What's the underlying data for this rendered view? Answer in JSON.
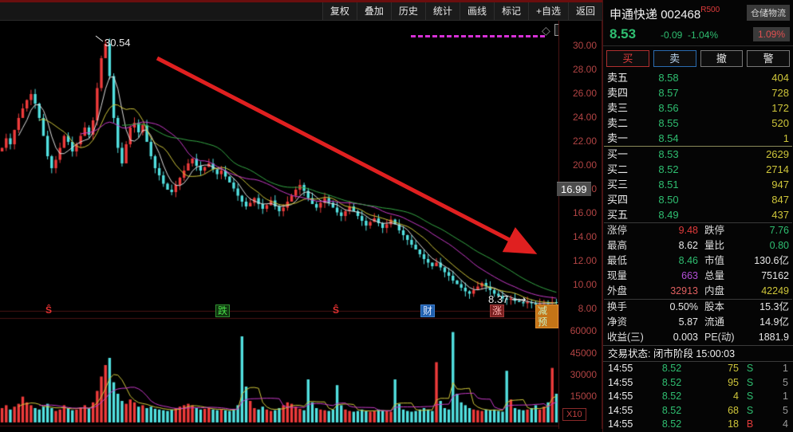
{
  "toolbar": {
    "items": [
      "复权",
      "叠加",
      "历史",
      "统计",
      "画线",
      "标记",
      "+自选",
      "返回"
    ]
  },
  "panel": {
    "header": {
      "name": "申通快递",
      "code": "002468",
      "tag_r": "R",
      "tag_idx": "500",
      "sector": "仓储物流",
      "price": "8.53",
      "change": "-0.09",
      "change_pct": "-1.04%",
      "sector_pct": "1.09%"
    },
    "actions": {
      "buy": "买",
      "sell": "卖",
      "cancel": "撤",
      "alert": "警"
    },
    "orderbook": {
      "asks": [
        {
          "label": "卖五",
          "price": "8.58",
          "vol": "404"
        },
        {
          "label": "卖四",
          "price": "8.57",
          "vol": "728"
        },
        {
          "label": "卖三",
          "price": "8.56",
          "vol": "172"
        },
        {
          "label": "卖二",
          "price": "8.55",
          "vol": "520"
        },
        {
          "label": "卖一",
          "price": "8.54",
          "vol": "1"
        }
      ],
      "bids": [
        {
          "label": "买一",
          "price": "8.53",
          "vol": "2629"
        },
        {
          "label": "买二",
          "price": "8.52",
          "vol": "2714"
        },
        {
          "label": "买三",
          "price": "8.51",
          "vol": "947"
        },
        {
          "label": "买四",
          "price": "8.50",
          "vol": "847"
        },
        {
          "label": "买五",
          "price": "8.49",
          "vol": "437"
        }
      ]
    },
    "stats": {
      "rows": [
        {
          "l1": "涨停",
          "v1": "9.48",
          "c1": "red",
          "l2": "跌停",
          "v2": "7.76",
          "c2": "green"
        },
        {
          "l1": "最高",
          "v1": "8.62",
          "c1": "white",
          "l2": "量比",
          "v2": "0.80",
          "c2": "green"
        },
        {
          "l1": "最低",
          "v1": "8.46",
          "c1": "green",
          "l2": "市值",
          "v2": "130.6亿",
          "c2": "white"
        },
        {
          "l1": "现量",
          "v1": "663",
          "c1": "purple",
          "l2": "总量",
          "v2": "75162",
          "c2": "white"
        },
        {
          "l1": "外盘",
          "v1": "32913",
          "c1": "pink",
          "l2": "内盘",
          "v2": "42249",
          "c2": "yellow"
        },
        {
          "l1": "换手",
          "v1": "0.50%",
          "c1": "white",
          "l2": "股本",
          "v2": "15.3亿",
          "c2": "white"
        },
        {
          "l1": "净资",
          "v1": "5.87",
          "c1": "white",
          "l2": "流通",
          "v2": "14.9亿",
          "c2": "white"
        },
        {
          "l1": "收益(三)",
          "v1": "0.003",
          "c1": "white",
          "l2": "PE(动)",
          "v2": "1881.9",
          "c2": "white"
        }
      ]
    },
    "status": "交易状态: 闭市阶段 15:00:03",
    "trades": [
      {
        "time": "14:55",
        "price": "8.52",
        "vol": "75",
        "dir": "S",
        "dirc": "green",
        "n": "1"
      },
      {
        "time": "14:55",
        "price": "8.52",
        "vol": "95",
        "dir": "S",
        "dirc": "green",
        "n": "5"
      },
      {
        "time": "14:55",
        "price": "8.52",
        "vol": "4",
        "dir": "S",
        "dirc": "green",
        "n": "1"
      },
      {
        "time": "14:55",
        "price": "8.52",
        "vol": "68",
        "dir": "S",
        "dirc": "green",
        "n": "5"
      },
      {
        "time": "14:55",
        "price": "8.52",
        "vol": "18",
        "dir": "B",
        "dirc": "red",
        "n": "4"
      }
    ]
  },
  "chart_data": {
    "type": "candlestick",
    "price_axis": [
      "30.00",
      "28.00",
      "26.00",
      "24.00",
      "22.00",
      "20.00",
      "18.00",
      "16.00",
      "14.00",
      "12.00",
      "10.00",
      "8.00"
    ],
    "volume_axis": [
      "60000",
      "45000",
      "30000",
      "15000"
    ],
    "volume_unit": "X10",
    "price_range": [
      8,
      30
    ],
    "annotations": {
      "peak_price": "30.54",
      "low_price": "8.37",
      "axis_tag": "16.99"
    },
    "markers": [
      {
        "label": "Ŝ"
      },
      {
        "label": "跌"
      },
      {
        "label": "Ŝ"
      },
      {
        "label": "财"
      },
      {
        "label": "涨"
      },
      {
        "label": "减预"
      }
    ],
    "colors": {
      "up": "#ee3b3b",
      "down": "#52e0e0",
      "axis_text": "#b24444",
      "ma5": "#dddddd",
      "ma10": "#cfc63a",
      "ma20": "#c83ac8",
      "ma30": "#35a845",
      "arrow": "#e02020",
      "dashed_line": "#d630d6"
    },
    "closes": [
      21.5,
      22.3,
      21.8,
      23.0,
      24.0,
      24.8,
      25.5,
      26.0,
      25.2,
      24.0,
      22.5,
      20.8,
      19.8,
      20.5,
      21.5,
      22.5,
      22.0,
      21.2,
      21.8,
      22.5,
      23.2,
      22.6,
      23.8,
      26.5,
      29.0,
      30.2,
      27.5,
      24.0,
      21.5,
      20.2,
      21.8,
      23.2,
      23.6,
      22.8,
      23.4,
      22.0,
      20.8,
      19.8,
      19.2,
      18.5,
      18.0,
      17.8,
      18.4,
      19.0,
      19.6,
      20.2,
      20.6,
      20.0,
      19.6,
      19.9,
      20.2,
      19.7,
      19.3,
      19.6,
      19.1,
      18.6,
      18.1,
      17.5,
      17.0,
      16.6,
      16.9,
      17.3,
      16.8,
      16.4,
      16.7,
      17.1,
      16.6,
      16.2,
      16.5,
      17.0,
      17.5,
      18.0,
      18.4,
      17.9,
      17.3,
      16.8,
      16.5,
      16.9,
      17.3,
      16.9,
      16.5,
      16.1,
      15.8,
      16.2,
      16.6,
      16.2,
      15.8,
      15.4,
      15.0,
      15.3,
      15.6,
      15.2,
      14.8,
      15.1,
      15.5,
      15.1,
      14.6,
      14.2,
      13.8,
      13.4,
      13.0,
      12.6,
      12.2,
      11.9,
      11.6,
      11.9,
      11.5,
      11.1,
      10.8,
      10.4,
      10.1,
      9.8,
      9.5,
      9.3,
      9.6,
      9.9,
      10.2,
      9.9,
      9.6,
      9.3,
      9.1,
      8.9,
      8.8,
      8.9,
      8.7,
      8.6,
      8.5,
      8.6,
      8.5,
      8.4,
      8.45,
      8.55,
      8.5,
      8.6,
      8.53
    ],
    "volumes": [
      10000,
      12000,
      9000,
      11000,
      13000,
      18000,
      14000,
      12000,
      10000,
      9000,
      11000,
      13000,
      10000,
      8000,
      9000,
      12000,
      10000,
      8500,
      9000,
      10500,
      12000,
      10000,
      14000,
      22000,
      32000,
      40000,
      45000,
      28000,
      20000,
      15000,
      13000,
      16000,
      14000,
      11000,
      12000,
      10000,
      11000,
      9500,
      9000,
      8500,
      8000,
      9000,
      10000,
      11000,
      12000,
      13000,
      12000,
      10000,
      9000,
      9500,
      10000,
      9000,
      8500,
      9000,
      8500,
      8000,
      9500,
      12000,
      60000,
      25000,
      15000,
      10000,
      9000,
      11000,
      9000,
      8000,
      8500,
      10000,
      12000,
      14000,
      13000,
      11000,
      9500,
      8500,
      30000,
      14000,
      10000,
      9000,
      8500,
      8000,
      9000,
      26000,
      12000,
      9000,
      8000,
      7500,
      8000,
      9000,
      8000,
      7500,
      8000,
      9000,
      8500,
      8000,
      7500,
      30000,
      13000,
      9000,
      8000,
      7500,
      8000,
      9000,
      10000,
      9000,
      8000,
      42000,
      15000,
      10000,
      9000,
      63000,
      20000,
      14000,
      12000,
      10000,
      9000,
      8500,
      8000,
      9000,
      8500,
      9000,
      8000,
      7500,
      36000,
      16000,
      10000,
      9000,
      8500,
      9000,
      10000,
      12000,
      9000,
      11000,
      14000,
      38000,
      20000
    ]
  }
}
